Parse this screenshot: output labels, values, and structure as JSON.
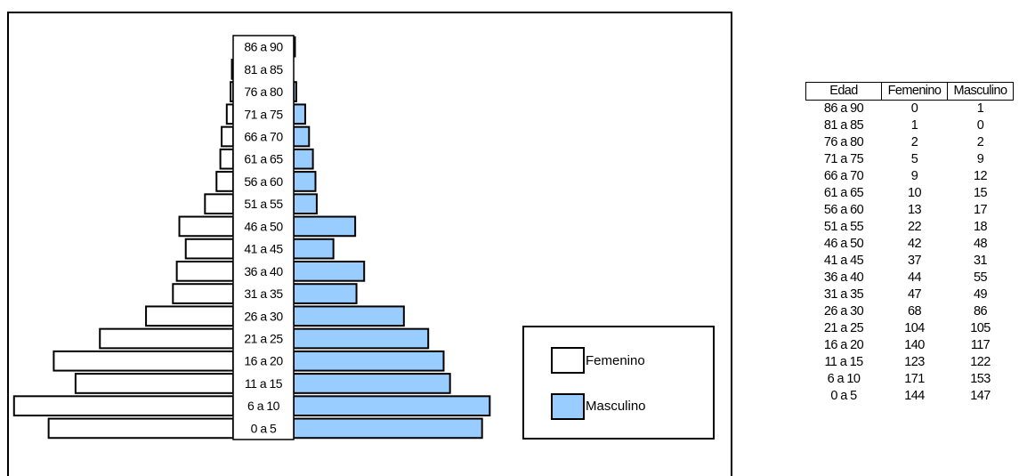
{
  "colors": {
    "femenino": "#ffffff",
    "masculino": "#99ccff",
    "border": "#000000"
  },
  "legend": {
    "femenino": "Femenino",
    "masculino": "Masculino"
  },
  "table": {
    "headers": [
      "Edad",
      "Femenino",
      "Masculino"
    ]
  },
  "chart_data": {
    "type": "bar",
    "orientation": "horizontal-pyramid",
    "categories": [
      "86 a 90",
      "81 a 85",
      "76 a 80",
      "71 a 75",
      "66 a 70",
      "61 a 65",
      "56 a 60",
      "51 a 55",
      "46 a 50",
      "41 a 45",
      "36 a 40",
      "31 a 35",
      "26 a 30",
      "21 a 25",
      "16 a 20",
      "11 a 15",
      "6 a 10",
      "0 a 5"
    ],
    "series": [
      {
        "name": "Femenino",
        "values": [
          0,
          1,
          2,
          5,
          9,
          10,
          13,
          22,
          42,
          37,
          44,
          47,
          68,
          104,
          140,
          123,
          171,
          144
        ]
      },
      {
        "name": "Masculino",
        "values": [
          1,
          0,
          2,
          9,
          12,
          15,
          17,
          18,
          48,
          31,
          55,
          49,
          86,
          105,
          117,
          122,
          153,
          147
        ]
      }
    ],
    "legend_position": "right",
    "grid": false
  }
}
